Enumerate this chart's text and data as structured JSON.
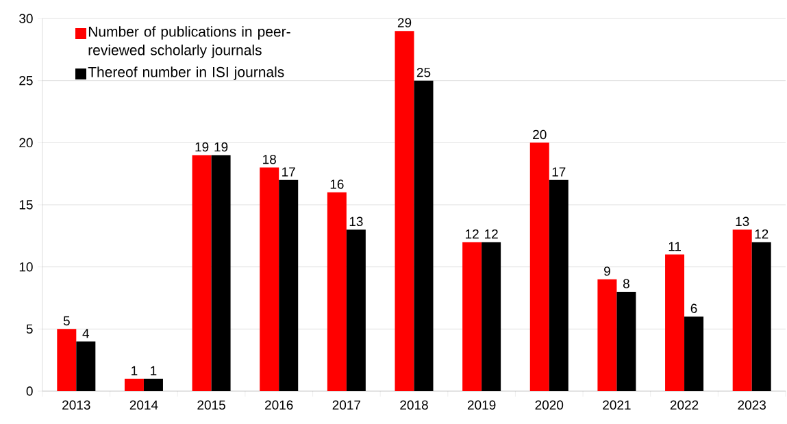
{
  "chart_data": {
    "type": "bar",
    "categories": [
      "2013",
      "2014",
      "2015",
      "2016",
      "2017",
      "2018",
      "2019",
      "2020",
      "2021",
      "2022",
      "2023"
    ],
    "series": [
      {
        "name": "Number of publications in peer-reviewed scholarly journals",
        "color": "#ff0000",
        "values": [
          5,
          1,
          19,
          18,
          16,
          29,
          12,
          20,
          9,
          11,
          13
        ]
      },
      {
        "name": "Thereof number in ISI journals",
        "color": "#000000",
        "values": [
          4,
          1,
          19,
          17,
          13,
          25,
          12,
          17,
          8,
          6,
          12
        ]
      }
    ],
    "ylim": [
      0,
      30
    ],
    "yticks": [
      0,
      5,
      10,
      15,
      20,
      25,
      30
    ],
    "grid": "y",
    "legend": "top left",
    "data_labels": true
  }
}
